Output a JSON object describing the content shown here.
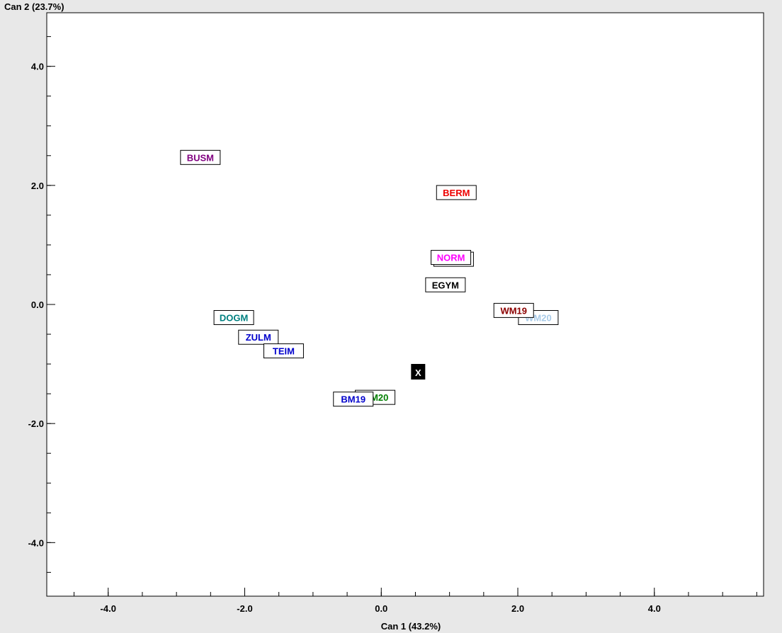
{
  "chart_data": {
    "type": "scatter",
    "xlabel": "Can 1 (43.2%)",
    "ylabel": "Can 2 (23.7%)",
    "xlim": [
      -4.9,
      5.6
    ],
    "ylim": [
      -4.9,
      4.9
    ],
    "x_ticks": [
      -4.0,
      -2.0,
      0.0,
      2.0,
      4.0
    ],
    "x_tick_labels": [
      "-4.0",
      "-2.0",
      "0.0",
      "2.0",
      "4.0"
    ],
    "y_ticks": [
      4.0,
      2.0,
      0.0,
      -2.0,
      -4.0
    ],
    "y_tick_labels": [
      "4.0",
      "2.0",
      "0.0",
      "-2.0",
      "-4.0"
    ],
    "x_minor_step": 0.5,
    "y_minor_step": 0.5,
    "grid": false,
    "points": [
      {
        "label": "BUSM",
        "x": -2.65,
        "y": 2.47,
        "color": "#800080"
      },
      {
        "label": "BERM",
        "x": 1.1,
        "y": 1.88,
        "color": "#ee0000"
      },
      {
        "label": "NORM",
        "x": 1.06,
        "y": 0.76,
        "color": "#000000"
      },
      {
        "label": "NORM",
        "x": 1.02,
        "y": 0.79,
        "color": "#ff00ff"
      },
      {
        "label": "EGYM",
        "x": 0.94,
        "y": 0.33,
        "color": "#000000"
      },
      {
        "label": "WM20",
        "x": 2.3,
        "y": -0.22,
        "color": "#a9cbe8"
      },
      {
        "label": "WM19",
        "x": 1.94,
        "y": -0.1,
        "color": "#8b0000"
      },
      {
        "label": "DOGM",
        "x": -2.16,
        "y": -0.22,
        "color": "#008080"
      },
      {
        "label": "ZULM",
        "x": -1.8,
        "y": -0.55,
        "color": "#0000cc"
      },
      {
        "label": "TEIM",
        "x": -1.43,
        "y": -0.78,
        "color": "#0000cc"
      },
      {
        "label": "WM20",
        "x": -0.09,
        "y": -1.56,
        "color": "#008000"
      },
      {
        "label": "BM19",
        "x": -0.41,
        "y": -1.59,
        "color": "#0000cc"
      }
    ],
    "marker": {
      "label": "X",
      "x": 0.54,
      "y": -1.13
    }
  }
}
